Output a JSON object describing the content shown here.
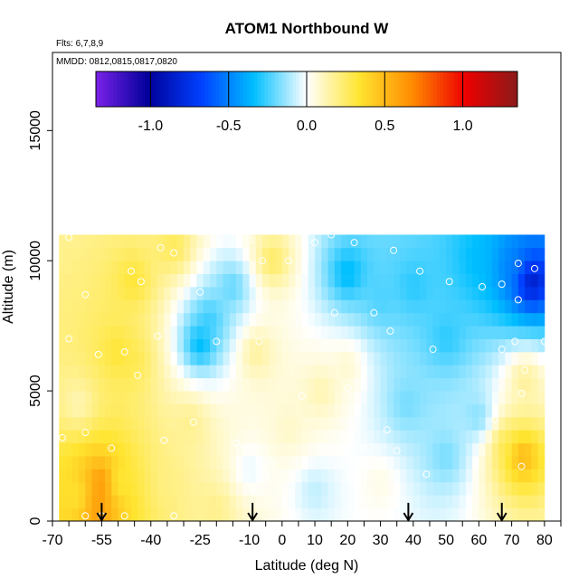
{
  "chart_data": {
    "type": "heatmap",
    "title": "ATOM1 Northbound W",
    "flights_note": "Flts: 6,7,8,9",
    "dates_note": "MMDD: 0812,0815,0817,0820",
    "xlabel": "Latitude (deg N)",
    "ylabel": "Altitude (m)",
    "xlim": [
      -70,
      85
    ],
    "ylim": [
      0,
      18000
    ],
    "x_ticks": [
      -70,
      -55,
      -40,
      -25,
      -10,
      0,
      10,
      20,
      30,
      40,
      50,
      60,
      70,
      80
    ],
    "x_tick_labels": [
      "-70",
      "-55",
      "-40",
      "-25",
      "-10",
      "0",
      "10",
      "20",
      "30",
      "40",
      "50",
      "60",
      "70",
      "80"
    ],
    "y_ticks": [
      0,
      5000,
      10000,
      15000
    ],
    "y_tick_labels": [
      "0",
      "5000",
      "10000",
      "15000"
    ],
    "colorbar": {
      "range": [
        -1.35,
        1.35
      ],
      "ticks": [
        -1.0,
        -0.5,
        0.0,
        0.5,
        1.0
      ],
      "tick_labels": [
        "-1.0",
        "-0.5",
        "0.0",
        "0.5",
        "1.0"
      ],
      "colors": [
        "#7a22e8",
        "#00009a",
        "#0040ff",
        "#00bfff",
        "#ffffff",
        "#ffe530",
        "#ff8c00",
        "#ee0000",
        "#8b1a1a"
      ]
    },
    "field": {
      "x_range": [
        -68,
        80
      ],
      "y_range": [
        0,
        11000
      ],
      "sample_points": [
        {
          "lat": -55,
          "alt": 1500,
          "w": 0.75
        },
        {
          "lat": -56,
          "alt": 500,
          "w": 0.7
        },
        {
          "lat": -50,
          "alt": 1500,
          "w": 0.25
        },
        {
          "lat": -62,
          "alt": 1000,
          "w": 0.3
        },
        {
          "lat": -45,
          "alt": 9200,
          "w": 0.35
        },
        {
          "lat": -50,
          "alt": 6500,
          "w": 0.35
        },
        {
          "lat": -45,
          "alt": 6200,
          "w": 0.3
        },
        {
          "lat": -33,
          "alt": 10500,
          "w": 0.3
        },
        {
          "lat": -25,
          "alt": 6800,
          "w": -0.45
        },
        {
          "lat": -22,
          "alt": 7800,
          "w": -0.3
        },
        {
          "lat": -28,
          "alt": 3800,
          "w": 0.2
        },
        {
          "lat": -3,
          "alt": 10000,
          "w": 0.3
        },
        {
          "lat": -8,
          "alt": 6500,
          "w": 0.2
        },
        {
          "lat": -15,
          "alt": 9000,
          "w": -0.25
        },
        {
          "lat": 2,
          "alt": 3500,
          "w": 0.1
        },
        {
          "lat": 12,
          "alt": 5000,
          "w": 0.15
        },
        {
          "lat": 20,
          "alt": 6000,
          "w": 0.1
        },
        {
          "lat": 20,
          "alt": 9500,
          "w": -0.4
        },
        {
          "lat": 30,
          "alt": 8500,
          "w": -0.25
        },
        {
          "lat": 38,
          "alt": 4500,
          "w": -0.2
        },
        {
          "lat": 40,
          "alt": 9000,
          "w": -0.3
        },
        {
          "lat": 50,
          "alt": 7000,
          "w": -0.3
        },
        {
          "lat": 60,
          "alt": 10000,
          "w": -0.35
        },
        {
          "lat": 70,
          "alt": 9800,
          "w": -0.5
        },
        {
          "lat": 76,
          "alt": 9200,
          "w": -0.95
        },
        {
          "lat": 73,
          "alt": 2500,
          "w": 0.6
        },
        {
          "lat": 68,
          "alt": 3000,
          "w": 0.3
        },
        {
          "lat": 74,
          "alt": 5500,
          "w": 0.2
        },
        {
          "lat": 60,
          "alt": 4000,
          "w": -0.2
        },
        {
          "lat": 30,
          "alt": 1500,
          "w": 0.05
        },
        {
          "lat": 50,
          "alt": 2500,
          "w": -0.2
        },
        {
          "lat": 10,
          "alt": 1200,
          "w": -0.1
        },
        {
          "lat": -35,
          "alt": 1500,
          "w": 0.2
        },
        {
          "lat": -20,
          "alt": 500,
          "w": 0.2
        },
        {
          "lat": -10,
          "alt": 2000,
          "w": -0.05
        },
        {
          "lat": -62,
          "alt": 4500,
          "w": 0.1
        }
      ]
    },
    "observations": [
      {
        "lat": -65,
        "alt": 10900
      },
      {
        "lat": -25,
        "alt": 11100
      },
      {
        "lat": -20,
        "alt": 11100
      },
      {
        "lat": -18,
        "alt": 11200
      },
      {
        "lat": -15,
        "alt": 11200
      },
      {
        "lat": -10,
        "alt": 10800
      },
      {
        "lat": -37,
        "alt": 10500
      },
      {
        "lat": -33,
        "alt": 10300
      },
      {
        "lat": -6,
        "alt": 10000
      },
      {
        "lat": 2,
        "alt": 10000
      },
      {
        "lat": 10,
        "alt": 10700
      },
      {
        "lat": 15,
        "alt": 11000
      },
      {
        "lat": 22,
        "alt": 10700
      },
      {
        "lat": 34,
        "alt": 10400
      },
      {
        "lat": 42,
        "alt": 9600
      },
      {
        "lat": 51,
        "alt": 9200
      },
      {
        "lat": 61,
        "alt": 9000
      },
      {
        "lat": 67,
        "alt": 9100
      },
      {
        "lat": 72,
        "alt": 9900
      },
      {
        "lat": 77,
        "alt": 9700
      },
      {
        "lat": 71,
        "alt": 11200
      },
      {
        "lat": -46,
        "alt": 9600
      },
      {
        "lat": -43,
        "alt": 9200
      },
      {
        "lat": -60,
        "alt": 8700
      },
      {
        "lat": -25,
        "alt": 8800
      },
      {
        "lat": 16,
        "alt": 8000
      },
      {
        "lat": 28,
        "alt": 8000
      },
      {
        "lat": 72,
        "alt": 8500
      },
      {
        "lat": -65,
        "alt": 7000
      },
      {
        "lat": -38,
        "alt": 7100
      },
      {
        "lat": -20,
        "alt": 6900
      },
      {
        "lat": -7,
        "alt": 6900
      },
      {
        "lat": 33,
        "alt": 7300
      },
      {
        "lat": 46,
        "alt": 6600
      },
      {
        "lat": 67,
        "alt": 6600
      },
      {
        "lat": 71,
        "alt": 6900
      },
      {
        "lat": 80,
        "alt": 6900
      },
      {
        "lat": -56,
        "alt": 6400
      },
      {
        "lat": -48,
        "alt": 6500
      },
      {
        "lat": -44,
        "alt": 5600
      },
      {
        "lat": 74,
        "alt": 5800
      },
      {
        "lat": 73,
        "alt": 4900
      },
      {
        "lat": 6,
        "alt": 4800
      },
      {
        "lat": 20,
        "alt": 5100
      },
      {
        "lat": 65,
        "alt": 3900
      },
      {
        "lat": -27,
        "alt": 3800
      },
      {
        "lat": 32,
        "alt": 3500
      },
      {
        "lat": -60,
        "alt": 3400
      },
      {
        "lat": -67,
        "alt": 3200
      },
      {
        "lat": -36,
        "alt": 3100
      },
      {
        "lat": -14,
        "alt": 3000
      },
      {
        "lat": -52,
        "alt": 2800
      },
      {
        "lat": 25,
        "alt": 2800
      },
      {
        "lat": 35,
        "alt": 2700
      },
      {
        "lat": -3,
        "alt": 2200
      },
      {
        "lat": 44,
        "alt": 1800
      },
      {
        "lat": 73,
        "alt": 2100
      },
      {
        "lat": -55,
        "alt": 200
      },
      {
        "lat": -60,
        "alt": 200
      },
      {
        "lat": -48,
        "alt": 200
      },
      {
        "lat": -33,
        "alt": 200
      },
      {
        "lat": 4,
        "alt": 200
      }
    ],
    "arrows": [
      {
        "lat": -55,
        "alt_top": 700
      },
      {
        "lat": -9,
        "alt_top": 700
      },
      {
        "lat": 38.5,
        "alt_top": 700
      },
      {
        "lat": 67,
        "alt_top": 700
      }
    ]
  }
}
